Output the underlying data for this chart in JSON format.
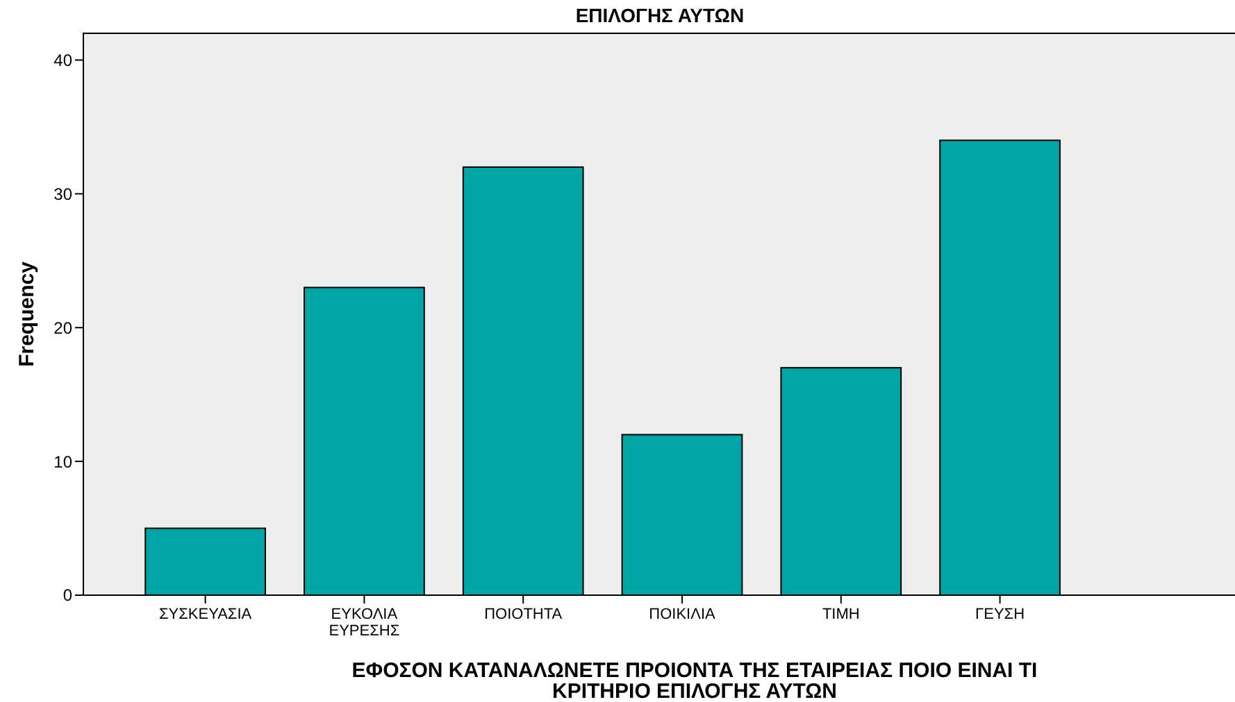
{
  "chart_data": {
    "type": "bar",
    "title": "ΕΠΙΛΟΓΗΣ ΑΥΤΩΝ",
    "xlabel": "ΕΦΟΣΟΝ ΚΑΤΑΝΑΛΩΝΕΤΕ ΠΡΟΙΟΝΤΑ ΤΗΣ ΕΤΑΙΡΕΙΑΣ ΠΟΙΟ ΕΙΝΑΙ ΤΙ\nΚΡΙΤΗΡΙΟ ΕΠΙΛΟΓΗΣ ΑΥΤΩΝ",
    "ylabel": "Frequency",
    "categories": [
      "ΣΥΣΚΕΥΑΣΙΑ",
      "ΕΥΚΟΛΙΑ\nΕΥΡΕΣΗΣ",
      "ΠΟΙΟΤΗΤΑ",
      "ΠΟΙΚΙΛΙΑ",
      "ΤΙΜΗ",
      "ΓΕΥΣΗ"
    ],
    "values": [
      5,
      23,
      32,
      12,
      17,
      34
    ],
    "color": "#00a5a5",
    "ylim": [
      0,
      42
    ],
    "yticks": [
      0,
      10,
      20,
      30,
      40
    ],
    "grid": false
  }
}
